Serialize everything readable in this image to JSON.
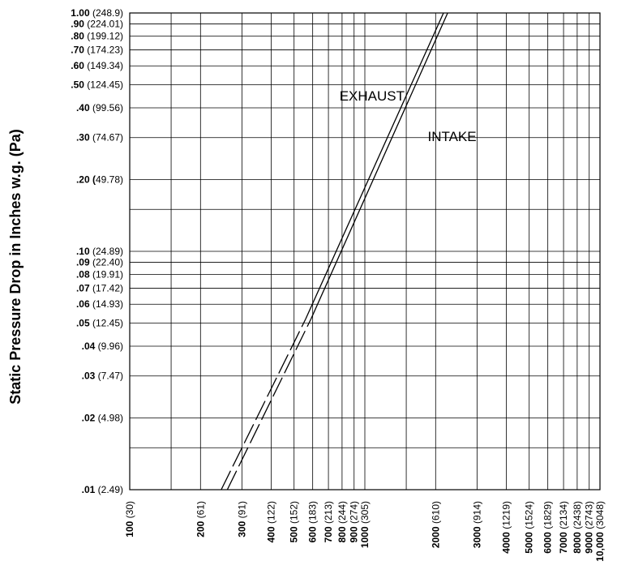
{
  "chart_data": {
    "type": "line",
    "title": "",
    "ylabel": "Static Pressure Drop in Inches w.g. (Pa)",
    "xlabel": "",
    "x_scale": "log",
    "y_scale": "log",
    "xlim": [
      100,
      10000
    ],
    "ylim": [
      0.01,
      1.0
    ],
    "grid": true,
    "y_ticks": [
      {
        "value": 1.0,
        "bold": "1.00",
        "rest": " (248.9)"
      },
      {
        "value": 0.9,
        "bold": ".90",
        "rest": " (224.01)"
      },
      {
        "value": 0.8,
        "bold": ".80",
        "rest": " (199.12)"
      },
      {
        "value": 0.7,
        "bold": ".70",
        "rest": " (174.23)"
      },
      {
        "value": 0.6,
        "bold": ".60",
        "rest": " (149.34)"
      },
      {
        "value": 0.5,
        "bold": ".50",
        "rest": " (124.45)"
      },
      {
        "value": 0.4,
        "bold": ".40",
        "rest": " (99.56)"
      },
      {
        "value": 0.3,
        "bold": ".30",
        "rest": " (74.67)"
      },
      {
        "value": 0.2,
        "bold": ".20 (",
        "rest": "49.78)"
      },
      {
        "value": 0.1,
        "bold": ".10",
        "rest": " (24.89)"
      },
      {
        "value": 0.09,
        "bold": ".09",
        "rest": " (22.40)"
      },
      {
        "value": 0.08,
        "bold": ".08",
        "rest": " (19.91)"
      },
      {
        "value": 0.07,
        "bold": ".07",
        "rest": " (17.42)"
      },
      {
        "value": 0.06,
        "bold": ".06",
        "rest": " (14.93)"
      },
      {
        "value": 0.05,
        "bold": ".05",
        "rest": " (12.45)"
      },
      {
        "value": 0.04,
        "bold": ".04",
        "rest": " (9.96)"
      },
      {
        "value": 0.03,
        "bold": ".03",
        "rest": " (7.47)"
      },
      {
        "value": 0.02,
        "bold": ".02",
        "rest": " (4.98)"
      },
      {
        "value": 0.01,
        "bold": ".01",
        "rest": " (2.49)"
      }
    ],
    "y_extra_gridlines": [
      0.15,
      0.015
    ],
    "x_ticks": [
      {
        "value": 100,
        "bold": "100",
        "rest": " (30)"
      },
      {
        "value": 200,
        "bold": "200",
        "rest": " (61)"
      },
      {
        "value": 300,
        "bold": "300",
        "rest": " (91)"
      },
      {
        "value": 400,
        "bold": "400",
        "rest": " (122)"
      },
      {
        "value": 500,
        "bold": "500",
        "rest": " (152)"
      },
      {
        "value": 600,
        "bold": "600",
        "rest": " (183)"
      },
      {
        "value": 700,
        "bold": "700",
        "rest": " (213)"
      },
      {
        "value": 800,
        "bold": "800",
        "rest": " (244)"
      },
      {
        "value": 900,
        "bold": "900",
        "rest": " (274)"
      },
      {
        "value": 1000,
        "bold": "1000",
        "rest": " (305)"
      },
      {
        "value": 2000,
        "bold": "2000",
        "rest": " (610)"
      },
      {
        "value": 3000,
        "bold": "3000",
        "rest": " (914)"
      },
      {
        "value": 4000,
        "bold": "4000",
        "rest": " (1219)"
      },
      {
        "value": 5000,
        "bold": "5000",
        "rest": " (1524)"
      },
      {
        "value": 6000,
        "bold": "6000",
        "rest": " (1829)"
      },
      {
        "value": 7000,
        "bold": "7000",
        "rest": " (2134)"
      },
      {
        "value": 8000,
        "bold": "8000",
        "rest": " (2438)"
      },
      {
        "value": 9000,
        "bold": "9000",
        "rest": " (2743)"
      },
      {
        "value": 10000,
        "bold": "10,000",
        "rest": " (3048)"
      }
    ],
    "x_extra_gridlines": [
      150,
      1500
    ],
    "series": [
      {
        "name": "EXHAUST",
        "label_at": {
          "x": 780,
          "y": 0.43
        },
        "dashed": [
          [
            245,
            0.01
          ],
          [
            560,
            0.052
          ]
        ],
        "solid": [
          [
            560,
            0.052
          ],
          [
            2160,
            1.0
          ]
        ]
      },
      {
        "name": "INTAKE",
        "label_at": {
          "x": 1850,
          "y": 0.29
        },
        "dashed": [
          [
            260,
            0.01
          ],
          [
            590,
            0.052
          ]
        ],
        "solid": [
          [
            590,
            0.052
          ],
          [
            2250,
            1.0
          ]
        ]
      }
    ],
    "colors": {
      "line": "#000000",
      "grid": "#000000",
      "background": "#ffffff"
    }
  }
}
